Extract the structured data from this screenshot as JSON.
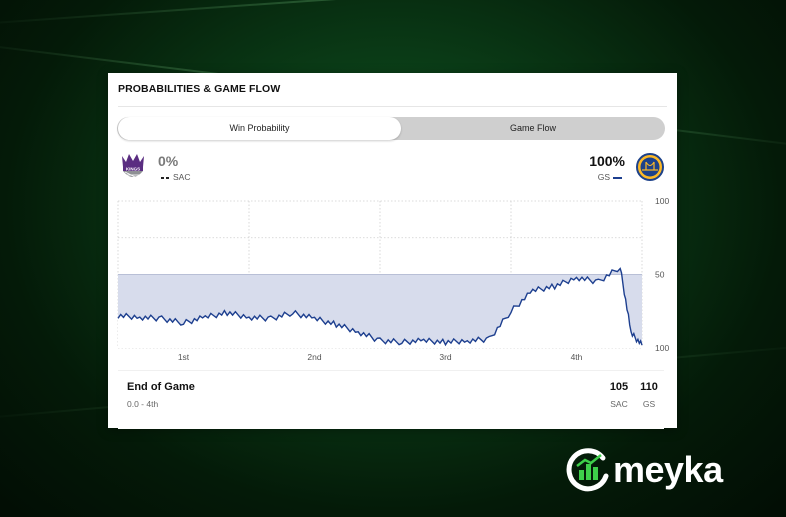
{
  "card": {
    "title": "PROBABILITIES & GAME FLOW"
  },
  "toggle": {
    "options": [
      "Win Probability",
      "Game Flow"
    ],
    "active": "Win Probability"
  },
  "teams": {
    "away": {
      "abbr": "SAC",
      "name": "Kings",
      "logo_text": "KINGS",
      "win_pct": "0%",
      "line_style": "dashed",
      "color": "#5a2d81"
    },
    "home": {
      "abbr": "GS",
      "name": "Warriors",
      "win_pct": "100%",
      "line_style": "solid",
      "color": "#1d428a"
    }
  },
  "chart_data": {
    "type": "line",
    "x_categories": [
      "1st",
      "2nd",
      "3rd",
      "4th"
    ],
    "y_tick_labels": [
      "100",
      "50",
      "100"
    ],
    "ylim": [
      0,
      100
    ],
    "baseline": 50,
    "series": [
      {
        "name": "GS",
        "x": [
          0,
          2,
          4,
          6,
          8,
          10,
          12,
          14,
          16,
          18,
          20,
          22,
          24,
          26,
          28,
          30,
          32,
          34,
          36,
          38,
          40,
          42,
          44,
          46,
          47,
          48
        ],
        "y": [
          22,
          21,
          20,
          17,
          21,
          24,
          21,
          20,
          24,
          20,
          16,
          11,
          5,
          4,
          5,
          4,
          5,
          6,
          25,
          39,
          42,
          48,
          45,
          55,
          10,
          2
        ]
      }
    ],
    "colors": {
      "line": "#1d3f8f",
      "fill": "#d7dcec",
      "grid": "#cfcfcf"
    }
  },
  "summary": {
    "status": "End of Game",
    "detail": "0.0 - 4th",
    "scores": [
      {
        "value": "105",
        "team": "SAC"
      },
      {
        "value": "110",
        "team": "GS"
      }
    ]
  },
  "brand": {
    "name": "meyka"
  }
}
